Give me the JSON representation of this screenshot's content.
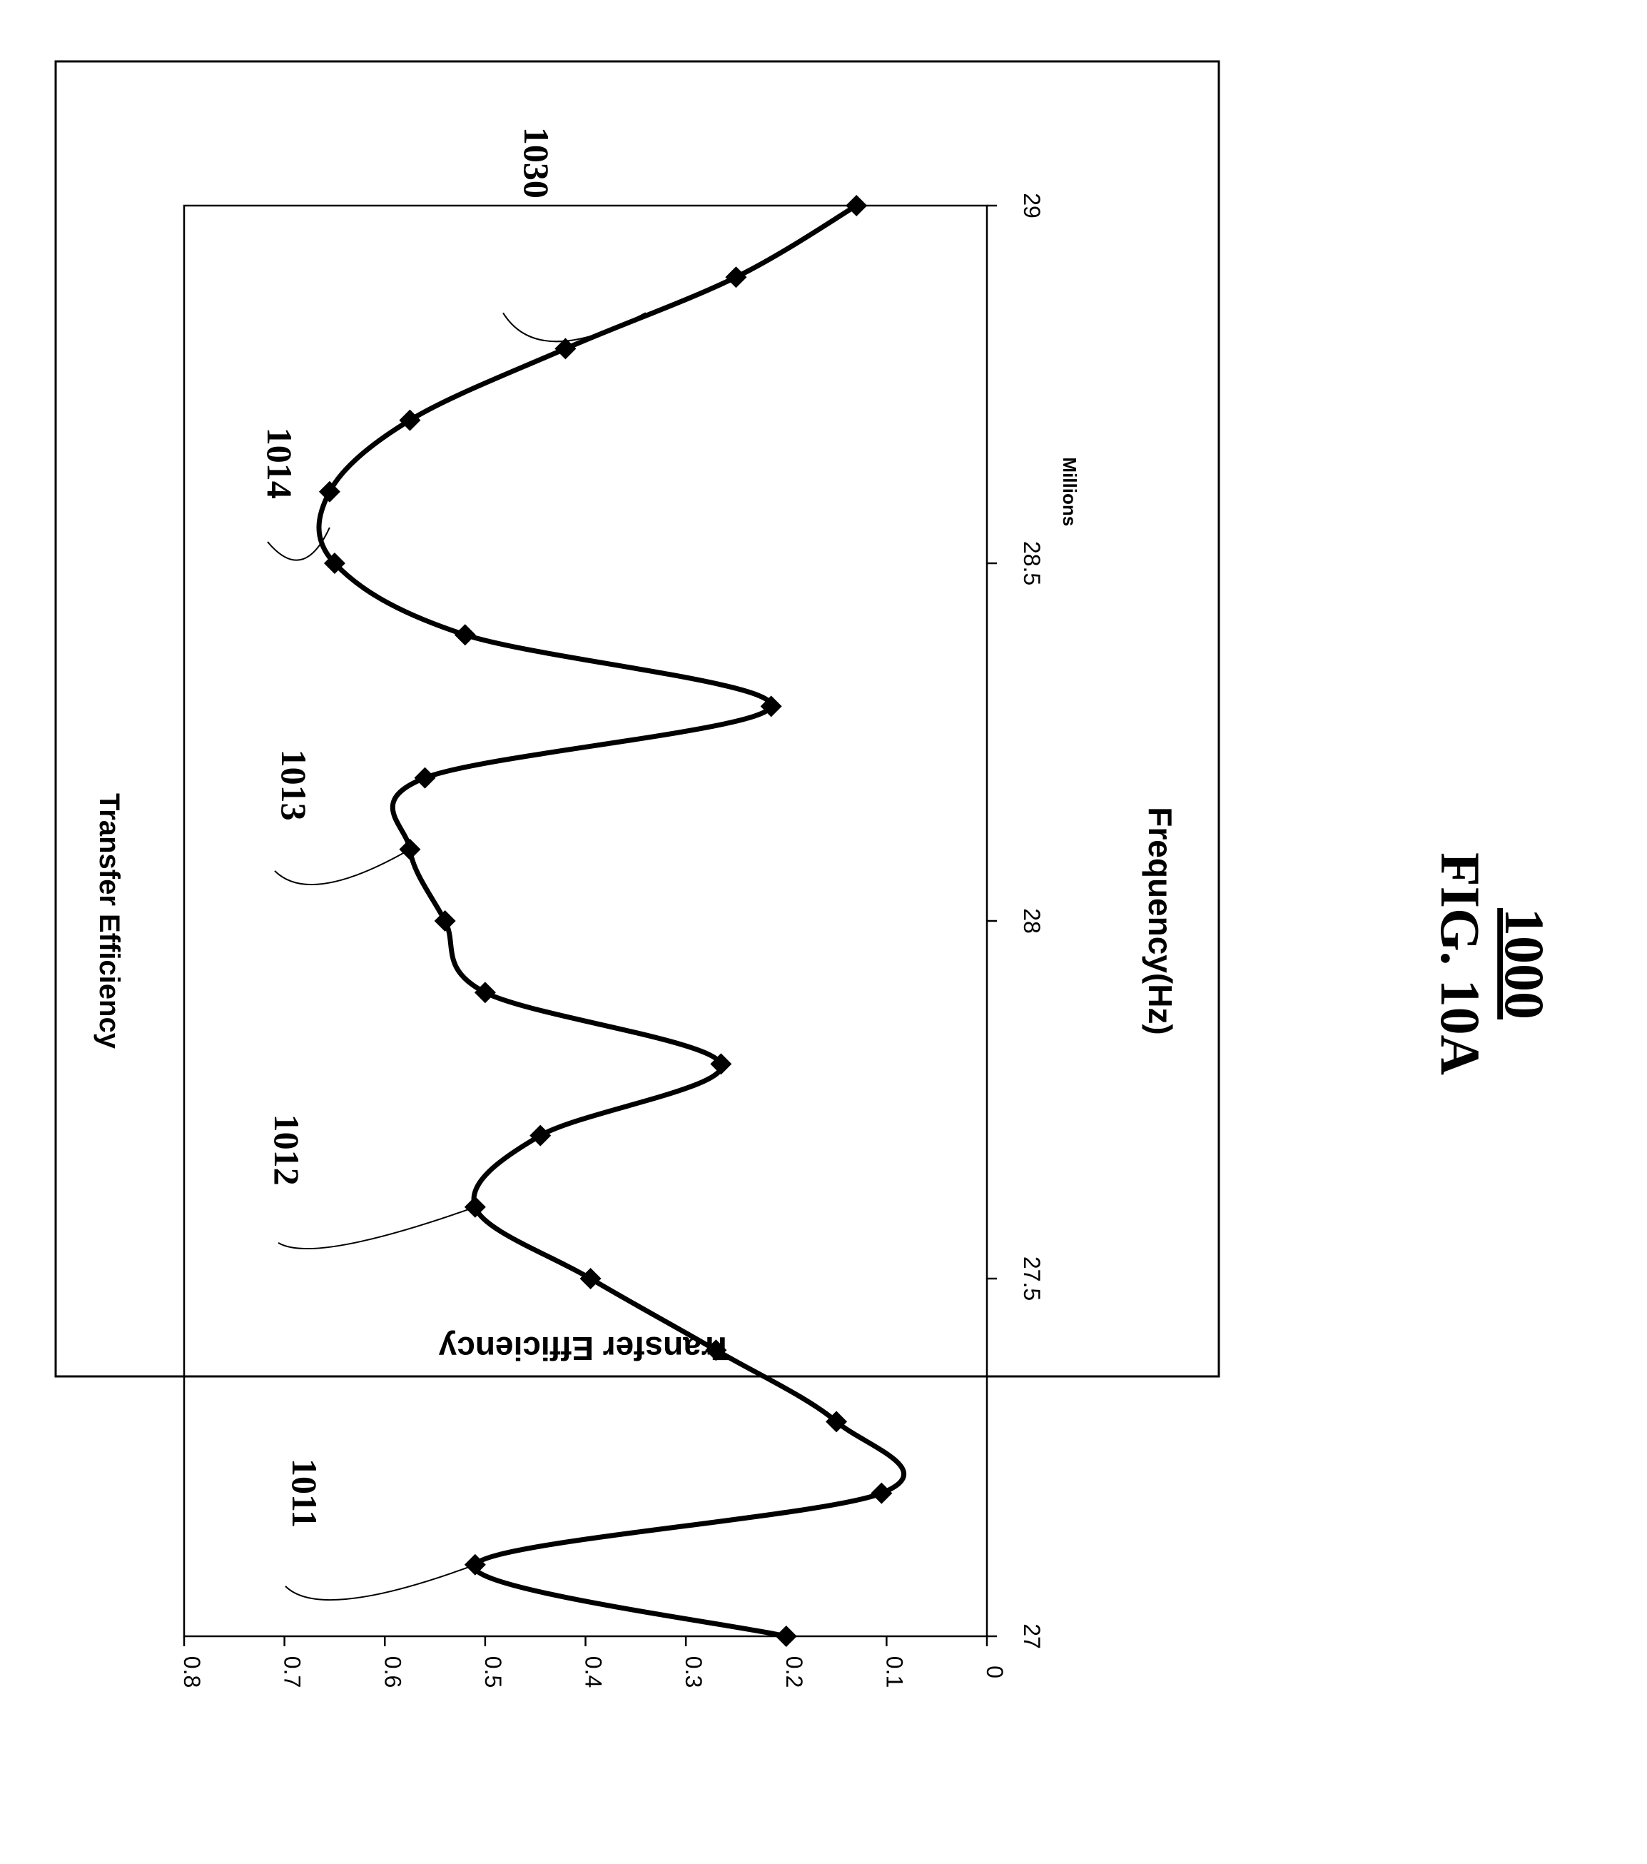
{
  "figure": {
    "label": "FIG. 10A",
    "number": "1000"
  },
  "chart_data": {
    "type": "line",
    "title": "Transfer Efficiency",
    "xlabel": "Frequency(Hz)",
    "ylabel": "Transfer Efficiency",
    "x_unit_label": "Millions",
    "xlim": [
      27,
      29
    ],
    "ylim": [
      0,
      0.8
    ],
    "x_ticks": [
      "27",
      "27.5",
      "28",
      "28.5",
      "29"
    ],
    "y_ticks": [
      "0",
      "0.1",
      "0.2",
      "0.3",
      "0.4",
      "0.5",
      "0.6",
      "0.7",
      "0.8"
    ],
    "grid": false,
    "series": [
      {
        "x": [
          27.0,
          27.1,
          27.2,
          27.3,
          27.4,
          27.5,
          27.6,
          27.7,
          27.8,
          27.9,
          28.0,
          28.1,
          28.2,
          28.3,
          28.4,
          28.5,
          28.6,
          28.7,
          28.8,
          28.9,
          29.0
        ],
        "y": [
          0.2,
          0.51,
          0.105,
          0.15,
          0.27,
          0.395,
          0.51,
          0.445,
          0.265,
          0.5,
          0.54,
          0.575,
          0.56,
          0.215,
          0.52,
          0.65,
          0.655,
          0.575,
          0.42,
          0.25,
          0.13
        ]
      }
    ],
    "callouts": [
      {
        "label": "1011",
        "x": 27.1,
        "y": 0.51
      },
      {
        "label": "1012",
        "x": 27.6,
        "y": 0.51
      },
      {
        "label": "1013",
        "x": 28.1,
        "y": 0.575
      },
      {
        "label": "1014",
        "x": 28.55,
        "y": 0.655
      },
      {
        "label": "1030",
        "x": 28.85,
        "y": 0.34
      }
    ]
  }
}
